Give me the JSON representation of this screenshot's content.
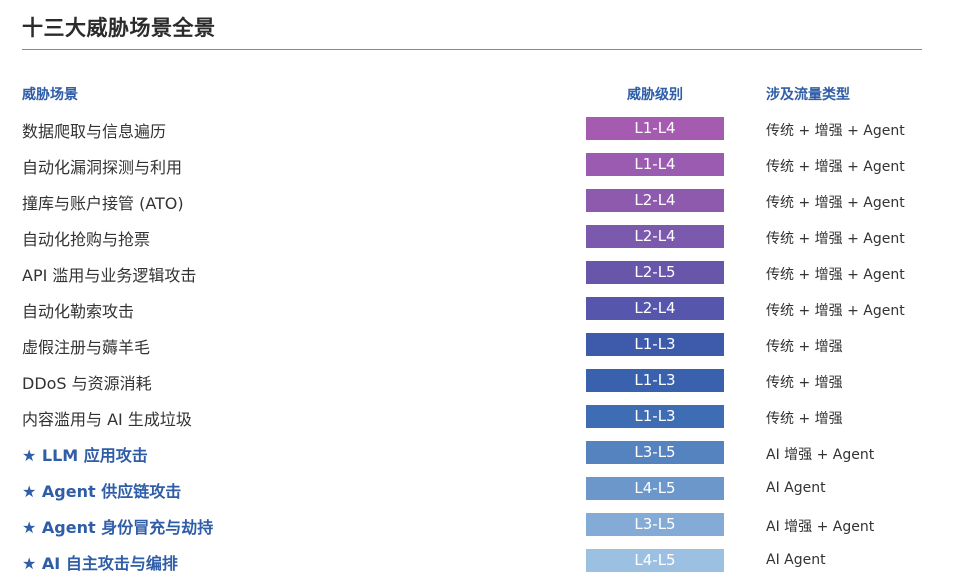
{
  "title": "十三大威胁场景全景",
  "headers": {
    "scene": "威胁场景",
    "level": "威胁级别",
    "traffic": "涉及流量类型"
  },
  "rows": [
    {
      "scene": "数据爬取与信息遍历",
      "level": "L1-L4",
      "traffic": "传统 + 增强 + Agent",
      "star": false,
      "color": "#a55cb0"
    },
    {
      "scene": "自动化漏洞探测与利用",
      "level": "L1-L4",
      "traffic": "传统 + 增强 + Agent",
      "star": false,
      "color": "#9a5bb0"
    },
    {
      "scene": "撞库与账户接管 (ATO)",
      "level": "L2-L4",
      "traffic": "传统 + 增强 + Agent",
      "star": false,
      "color": "#8e5aae"
    },
    {
      "scene": "自动化抢购与抢票",
      "level": "L2-L4",
      "traffic": "传统 + 增强 + Agent",
      "star": false,
      "color": "#7b59ac"
    },
    {
      "scene": "API 滥用与业务逻辑攻击",
      "level": "L2-L5",
      "traffic": "传统 + 增强 + Agent",
      "star": false,
      "color": "#6856ab"
    },
    {
      "scene": "自动化勒索攻击",
      "level": "L2-L4",
      "traffic": "传统 + 增强 + Agent",
      "star": false,
      "color": "#5656ac"
    },
    {
      "scene": "虚假注册与薅羊毛",
      "level": "L1-L3",
      "traffic": "传统 + 增强",
      "star": false,
      "color": "#3e5aaa"
    },
    {
      "scene": "DDoS 与资源消耗",
      "level": "L1-L3",
      "traffic": "传统 + 增强",
      "star": false,
      "color": "#3a61ad"
    },
    {
      "scene": "内容滥用与 AI 生成垃圾",
      "level": "L1-L3",
      "traffic": "传统 + 增强",
      "star": false,
      "color": "#3f6db3"
    },
    {
      "scene": "★ LLM 应用攻击",
      "level": "L3-L5",
      "traffic": "AI 增强 + Agent",
      "star": true,
      "color": "#5583bf"
    },
    {
      "scene": "★ Agent 供应链攻击",
      "level": "L4-L5",
      "traffic": "AI Agent",
      "star": true,
      "color": "#6b97cb"
    },
    {
      "scene": "★ Agent 身份冒充与劫持",
      "level": "L3-L5",
      "traffic": "AI 增强 + Agent",
      "star": true,
      "color": "#84aad6"
    },
    {
      "scene": "★ AI 自主攻击与编排",
      "level": "L4-L5",
      "traffic": "AI Agent",
      "star": true,
      "color": "#9cc0e2"
    }
  ]
}
